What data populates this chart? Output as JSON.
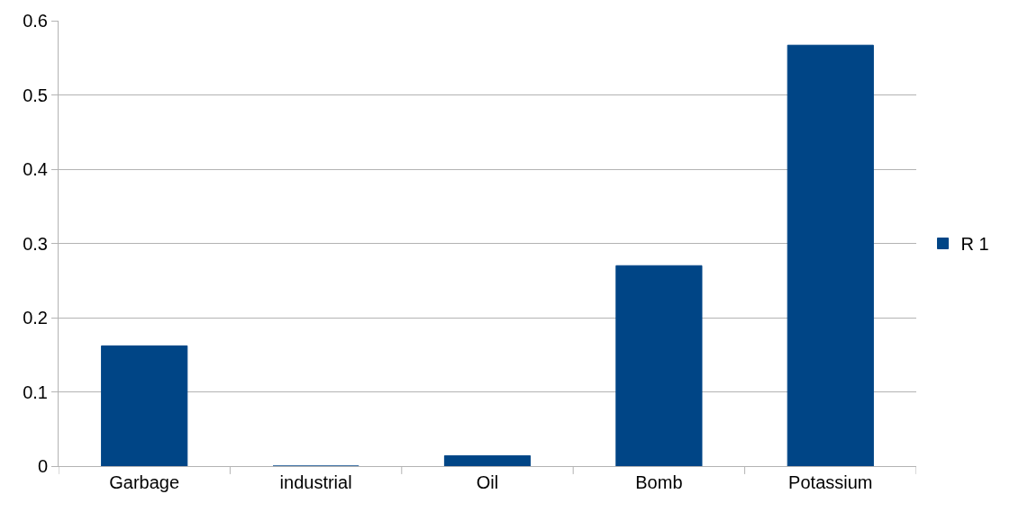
{
  "chart_data": {
    "type": "bar",
    "categories": [
      "Garbage",
      "industrial",
      "Oil",
      "Bomb",
      "Potassium"
    ],
    "series": [
      {
        "name": "R 1",
        "color": "#004586",
        "values": [
          0.162,
          0,
          0.014,
          0.27,
          0.567
        ]
      }
    ],
    "ylim": [
      0,
      0.6
    ],
    "yticks": [
      0,
      0.1,
      0.2,
      0.3,
      0.4,
      0.5,
      0.6
    ],
    "grid": "y",
    "legend": "right"
  }
}
